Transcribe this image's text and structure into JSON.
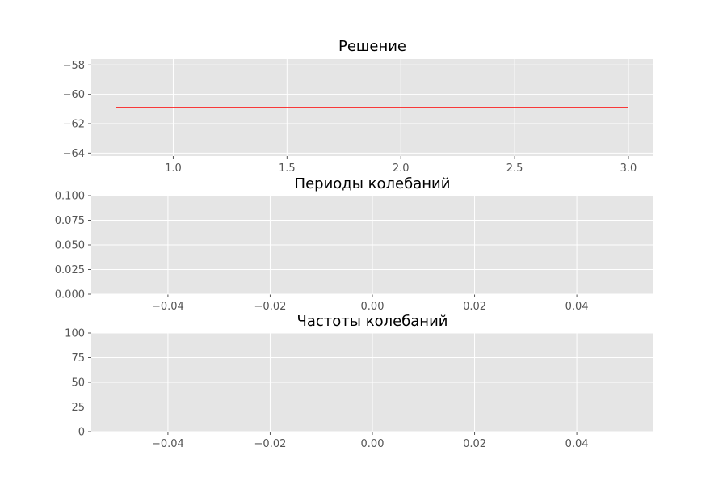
{
  "chart_data": [
    {
      "type": "line",
      "title": "Решение",
      "xlim": [
        0.64,
        3.11
      ],
      "ylim": [
        -64.2,
        -57.6
      ],
      "xticks": [
        1.0,
        1.5,
        2.0,
        2.5,
        3.0
      ],
      "xtick_labels": [
        "1.0",
        "1.5",
        "2.0",
        "2.5",
        "3.0"
      ],
      "yticks": [
        -58,
        -60,
        -62,
        -64
      ],
      "ytick_labels": [
        "−58",
        "−60",
        "−62",
        "−64"
      ],
      "grid": true,
      "series": [
        {
          "color": "#ff0000",
          "x": [
            0.75,
            3.0
          ],
          "y": [
            -60.9,
            -60.9
          ]
        }
      ]
    },
    {
      "type": "line",
      "title": "Периоды колебаний",
      "xlim": [
        -0.055,
        0.055
      ],
      "ylim": [
        0,
        0.1
      ],
      "xticks": [
        -0.04,
        -0.02,
        0.0,
        0.02,
        0.04
      ],
      "xtick_labels": [
        "−0.04",
        "−0.02",
        "0.00",
        "0.02",
        "0.04"
      ],
      "yticks": [
        0.0,
        0.025,
        0.05,
        0.075,
        0.1
      ],
      "ytick_labels": [
        "0.000",
        "0.025",
        "0.050",
        "0.075",
        "0.100"
      ],
      "grid": true,
      "series": []
    },
    {
      "type": "line",
      "title": "Частоты колебаний",
      "xlim": [
        -0.055,
        0.055
      ],
      "ylim": [
        0,
        100
      ],
      "xticks": [
        -0.04,
        -0.02,
        0.0,
        0.02,
        0.04
      ],
      "xtick_labels": [
        "−0.04",
        "−0.02",
        "0.00",
        "0.02",
        "0.04"
      ],
      "yticks": [
        0,
        25,
        50,
        75,
        100
      ],
      "ytick_labels": [
        "0",
        "25",
        "50",
        "75",
        "100"
      ],
      "grid": true,
      "series": []
    }
  ]
}
